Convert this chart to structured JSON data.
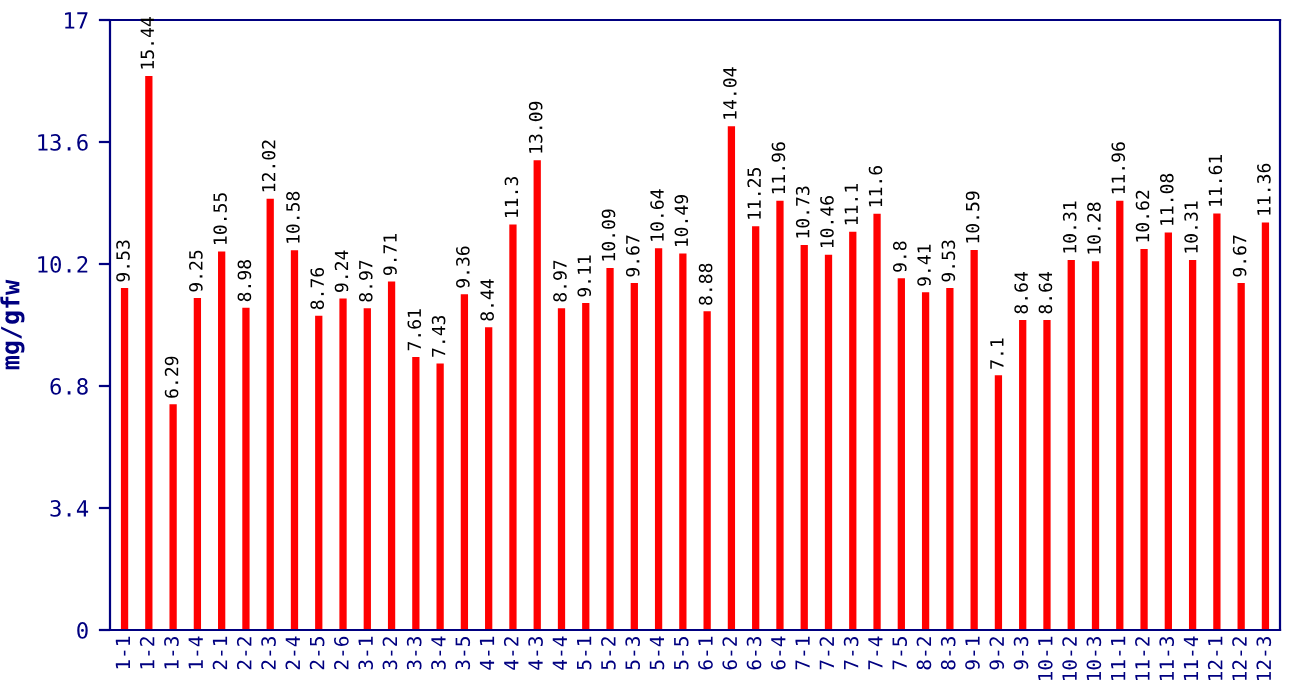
{
  "chart_data": {
    "type": "bar",
    "ylabel": "mg/gfw",
    "categories": [
      "1-1",
      "1-2",
      "1-3",
      "1-4",
      "2-1",
      "2-2",
      "2-3",
      "2-4",
      "2-5",
      "2-6",
      "3-1",
      "3-2",
      "3-3",
      "3-4",
      "3-5",
      "4-1",
      "4-2",
      "4-3",
      "4-4",
      "5-1",
      "5-2",
      "5-3",
      "5-4",
      "5-5",
      "6-1",
      "6-2",
      "6-3",
      "6-4",
      "7-1",
      "7-2",
      "7-3",
      "7-4",
      "7-5",
      "8-2",
      "8-3",
      "9-1",
      "9-2",
      "9-3",
      "10-1",
      "10-2",
      "10-3",
      "11-1",
      "11-2",
      "11-3",
      "11-4",
      "12-1",
      "12-2",
      "12-3"
    ],
    "values": [
      9.53,
      15.44,
      6.29,
      9.25,
      10.55,
      8.98,
      12.02,
      10.58,
      8.76,
      9.24,
      8.97,
      9.71,
      7.61,
      7.43,
      9.36,
      8.44,
      11.3,
      13.09,
      8.97,
      9.11,
      10.09,
      9.67,
      10.64,
      10.49,
      8.88,
      14.04,
      11.25,
      11.96,
      10.73,
      10.46,
      11.1,
      11.6,
      9.8,
      9.41,
      9.53,
      10.59,
      7.1,
      8.64,
      8.64,
      10.31,
      10.28,
      11.96,
      10.62,
      11.08,
      10.31,
      11.61,
      9.67,
      11.36
    ],
    "value_labels": [
      "9.53",
      "15.44",
      "6.29",
      "9.25",
      "10.55",
      "8.98",
      "12.02",
      "10.58",
      "8.76",
      "9.24",
      "8.97",
      "9.71",
      "7.61",
      "7.43",
      "9.36",
      "8.44",
      "11.3",
      "13.09",
      "8.97",
      "9.11",
      "10.09",
      "9.67",
      "10.64",
      "10.49",
      "8.88",
      "14.04",
      "11.25",
      "11.96",
      "10.73",
      "10.46",
      "11.1",
      "11.6",
      "9.8",
      "9.41",
      "9.53",
      "10.59",
      "7.1",
      "8.64",
      "8.64",
      "10.31",
      "10.28",
      "11.96",
      "10.62",
      "11.08",
      "10.31",
      "11.61",
      "9.67",
      "11.36"
    ],
    "color": "#ff0000",
    "ylim": [
      0,
      17
    ],
    "yticks": [
      0,
      3.4,
      6.8,
      10.2,
      13.6,
      17
    ],
    "grid": false
  }
}
